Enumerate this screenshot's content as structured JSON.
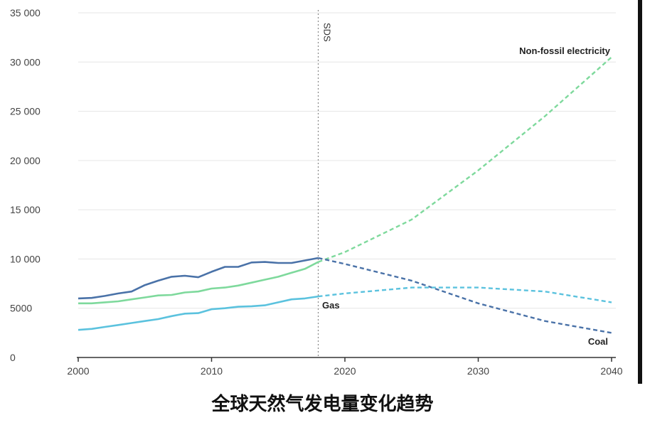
{
  "caption": "全球天然气发电量变化趋势",
  "chart_data": {
    "type": "line",
    "title": "",
    "xlabel": "",
    "ylabel": "",
    "xlim": [
      2000,
      2040
    ],
    "ylim": [
      0,
      35000
    ],
    "x_ticks": [
      2000,
      2010,
      2020,
      2030,
      2040
    ],
    "x_tick_labels": [
      "2000",
      "2010",
      "2020",
      "2030",
      "2040"
    ],
    "y_ticks": [
      0,
      5000,
      10000,
      15000,
      20000,
      25000,
      30000,
      35000
    ],
    "y_tick_labels": [
      "0",
      "5000",
      "10 000",
      "15 000",
      "20 000",
      "25 000",
      "30 000",
      "35 000"
    ],
    "grid": "horizontal",
    "marker": {
      "x": 2018,
      "label": "SDS"
    },
    "series": [
      {
        "name": "Non-fossil electricity",
        "color": "#7ed99c",
        "historical": [
          [
            2000,
            5500
          ],
          [
            2001,
            5500
          ],
          [
            2002,
            5600
          ],
          [
            2003,
            5700
          ],
          [
            2004,
            5900
          ],
          [
            2005,
            6100
          ],
          [
            2006,
            6300
          ],
          [
            2007,
            6350
          ],
          [
            2008,
            6600
          ],
          [
            2009,
            6700
          ],
          [
            2010,
            7000
          ],
          [
            2011,
            7100
          ],
          [
            2012,
            7300
          ],
          [
            2013,
            7600
          ],
          [
            2014,
            7900
          ],
          [
            2015,
            8200
          ],
          [
            2016,
            8600
          ],
          [
            2017,
            9000
          ],
          [
            2018,
            9700
          ]
        ],
        "projection": [
          [
            2018,
            9700
          ],
          [
            2020,
            10700
          ],
          [
            2025,
            14000
          ],
          [
            2030,
            19000
          ],
          [
            2035,
            24500
          ],
          [
            2040,
            30500
          ]
        ]
      },
      {
        "name": "Coal",
        "color": "#4a72a8",
        "historical": [
          [
            2000,
            6000
          ],
          [
            2001,
            6050
          ],
          [
            2002,
            6250
          ],
          [
            2003,
            6500
          ],
          [
            2004,
            6700
          ],
          [
            2005,
            7350
          ],
          [
            2006,
            7800
          ],
          [
            2007,
            8200
          ],
          [
            2008,
            8300
          ],
          [
            2009,
            8150
          ],
          [
            2010,
            8700
          ],
          [
            2011,
            9200
          ],
          [
            2012,
            9200
          ],
          [
            2013,
            9650
          ],
          [
            2014,
            9700
          ],
          [
            2015,
            9600
          ],
          [
            2016,
            9600
          ],
          [
            2017,
            9850
          ],
          [
            2018,
            10100
          ]
        ],
        "projection": [
          [
            2018,
            10100
          ],
          [
            2020,
            9500
          ],
          [
            2025,
            7800
          ],
          [
            2030,
            5500
          ],
          [
            2035,
            3700
          ],
          [
            2040,
            2500
          ]
        ]
      },
      {
        "name": "Gas",
        "color": "#5bc2de",
        "historical": [
          [
            2000,
            2800
          ],
          [
            2001,
            2900
          ],
          [
            2002,
            3100
          ],
          [
            2003,
            3300
          ],
          [
            2004,
            3500
          ],
          [
            2005,
            3700
          ],
          [
            2006,
            3900
          ],
          [
            2007,
            4200
          ],
          [
            2008,
            4450
          ],
          [
            2009,
            4500
          ],
          [
            2010,
            4900
          ],
          [
            2011,
            5000
          ],
          [
            2012,
            5150
          ],
          [
            2013,
            5200
          ],
          [
            2014,
            5300
          ],
          [
            2015,
            5600
          ],
          [
            2016,
            5900
          ],
          [
            2017,
            6000
          ],
          [
            2018,
            6200
          ]
        ],
        "projection": [
          [
            2018,
            6200
          ],
          [
            2020,
            6500
          ],
          [
            2025,
            7100
          ],
          [
            2030,
            7100
          ],
          [
            2035,
            6700
          ],
          [
            2040,
            5600
          ]
        ]
      }
    ]
  }
}
